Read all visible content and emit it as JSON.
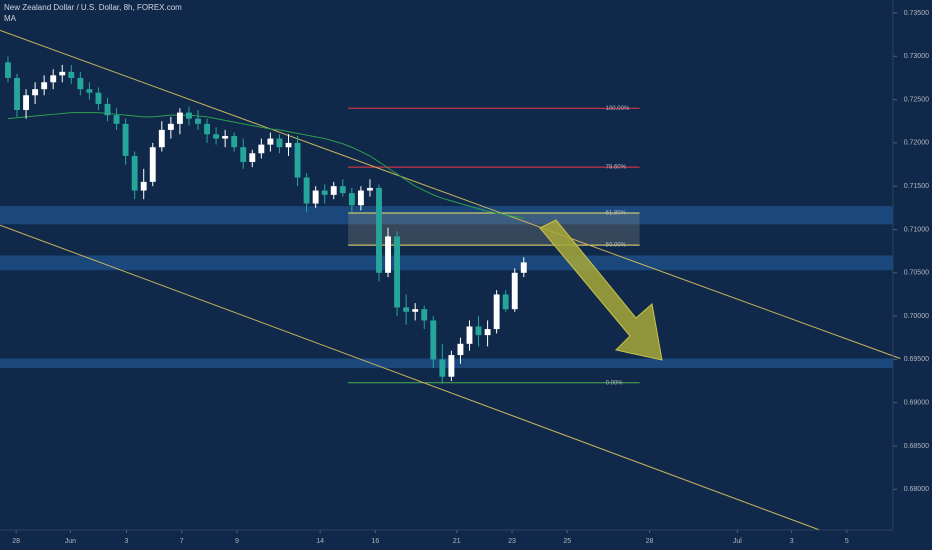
{
  "chart_data": {
    "type": "candlestick",
    "title": "New Zealand Dollar / U.S. Dollar, 8h, FOREX.com",
    "subtitle": "MA",
    "x": [
      0,
      1,
      2,
      3,
      4,
      5,
      6,
      7,
      8,
      9,
      10,
      11,
      12,
      13,
      14,
      15,
      16,
      17,
      18,
      19,
      20,
      21,
      22,
      23,
      24,
      25,
      26,
      27,
      28,
      29,
      30,
      31,
      32,
      33,
      34,
      35,
      36,
      37,
      38,
      39,
      40,
      41,
      42,
      43,
      44,
      45,
      46,
      47,
      48,
      49,
      50,
      51,
      52,
      53,
      54,
      55,
      56,
      57
    ],
    "open": [
      0.7293,
      0.7275,
      0.7238,
      0.7255,
      0.7262,
      0.727,
      0.7278,
      0.7282,
      0.7275,
      0.7262,
      0.7258,
      0.7245,
      0.7232,
      0.7222,
      0.7185,
      0.7145,
      0.7155,
      0.7195,
      0.7215,
      0.7222,
      0.7235,
      0.7228,
      0.7222,
      0.721,
      0.7205,
      0.7208,
      0.7195,
      0.7178,
      0.7188,
      0.7198,
      0.7205,
      0.7195,
      0.72,
      0.716,
      0.713,
      0.7145,
      0.714,
      0.715,
      0.7142,
      0.7128,
      0.7145,
      0.7148,
      0.705,
      0.7092,
      0.701,
      0.7005,
      0.7008,
      0.6995,
      0.695,
      0.693,
      0.6955,
      0.6968,
      0.6988,
      0.6978,
      0.6985,
      0.7025,
      0.7008,
      0.705
    ],
    "high": [
      0.73,
      0.728,
      0.7262,
      0.727,
      0.7278,
      0.7285,
      0.729,
      0.729,
      0.7282,
      0.727,
      0.7264,
      0.7252,
      0.724,
      0.7228,
      0.719,
      0.717,
      0.72,
      0.7225,
      0.723,
      0.724,
      0.7242,
      0.7238,
      0.7228,
      0.7218,
      0.7215,
      0.7212,
      0.7205,
      0.7192,
      0.7205,
      0.7212,
      0.721,
      0.721,
      0.7208,
      0.7165,
      0.715,
      0.7152,
      0.7155,
      0.7158,
      0.7148,
      0.715,
      0.7158,
      0.7152,
      0.7102,
      0.7098,
      0.7025,
      0.7015,
      0.7012,
      0.7,
      0.6968,
      0.696,
      0.6975,
      0.6995,
      0.7,
      0.6995,
      0.703,
      0.703,
      0.7055,
      0.7068
    ],
    "low": [
      0.727,
      0.723,
      0.7228,
      0.7245,
      0.7255,
      0.7262,
      0.727,
      0.7268,
      0.7255,
      0.725,
      0.7238,
      0.7225,
      0.7215,
      0.7175,
      0.7135,
      0.7135,
      0.715,
      0.719,
      0.7205,
      0.721,
      0.722,
      0.7215,
      0.72,
      0.7198,
      0.7195,
      0.719,
      0.717,
      0.7172,
      0.7182,
      0.719,
      0.7188,
      0.7185,
      0.715,
      0.712,
      0.7125,
      0.713,
      0.7135,
      0.7138,
      0.712,
      0.7122,
      0.7138,
      0.704,
      0.7045,
      0.7,
      0.699,
      0.6995,
      0.6985,
      0.694,
      0.6922,
      0.6925,
      0.6945,
      0.696,
      0.6965,
      0.6965,
      0.698,
      0.7005,
      0.7005,
      0.7045
    ],
    "close": [
      0.7275,
      0.7238,
      0.7255,
      0.7262,
      0.727,
      0.7278,
      0.7282,
      0.7275,
      0.7262,
      0.7258,
      0.7245,
      0.7232,
      0.7222,
      0.7185,
      0.7145,
      0.7155,
      0.7195,
      0.7215,
      0.7222,
      0.7235,
      0.7228,
      0.7222,
      0.721,
      0.7205,
      0.7208,
      0.7195,
      0.7178,
      0.7188,
      0.7198,
      0.7205,
      0.7195,
      0.72,
      0.716,
      0.713,
      0.7145,
      0.714,
      0.715,
      0.7142,
      0.7128,
      0.7145,
      0.7148,
      0.705,
      0.7092,
      0.701,
      0.7005,
      0.7008,
      0.6995,
      0.695,
      0.693,
      0.6955,
      0.6968,
      0.6988,
      0.6978,
      0.6985,
      0.7025,
      0.7008,
      0.705,
      0.7062
    ],
    "up_color": "#ffffff",
    "down_color": "#26a69a",
    "ma": {
      "name": "MA",
      "color": "#2e9e4f",
      "values": [
        0.7228,
        0.7229,
        0.723,
        0.7231,
        0.7232,
        0.7233,
        0.7234,
        0.7235,
        0.7235,
        0.7235,
        0.7235,
        0.7234,
        0.7233,
        0.7232,
        0.7231,
        0.723,
        0.723,
        0.7231,
        0.7232,
        0.7232,
        0.7232,
        0.7231,
        0.723,
        0.7228,
        0.7226,
        0.7224,
        0.7222,
        0.722,
        0.7218,
        0.7216,
        0.7215,
        0.7213,
        0.7211,
        0.7209,
        0.7207,
        0.7205,
        0.7202,
        0.7199,
        0.7195,
        0.719,
        0.7185,
        0.7178,
        0.7171,
        0.7164,
        0.7157,
        0.715,
        0.7145,
        0.714,
        0.7136,
        0.7133,
        0.713,
        0.7127,
        0.7124,
        0.7121,
        0.7119,
        0.7117,
        0.7115,
        0.7113
      ]
    },
    "xlim": [
      -0.88,
      97.8
    ],
    "ylim": [
      0.6753,
      0.7365
    ],
    "xticks": [
      {
        "value": 0.9,
        "label": "28"
      },
      {
        "value": 6.9,
        "label": "Jun"
      },
      {
        "value": 13.1,
        "label": "3"
      },
      {
        "value": 19.2,
        "label": "7"
      },
      {
        "value": 25.3,
        "label": "9"
      },
      {
        "value": 34.5,
        "label": "14"
      },
      {
        "value": 40.6,
        "label": "16"
      },
      {
        "value": 49.6,
        "label": "21"
      },
      {
        "value": 55.7,
        "label": "23"
      },
      {
        "value": 61.8,
        "label": "25"
      },
      {
        "value": 70.9,
        "label": "28"
      },
      {
        "value": 80.6,
        "label": "Jul"
      },
      {
        "value": 86.6,
        "label": "3"
      },
      {
        "value": 92.7,
        "label": "5"
      }
    ],
    "yticks": [
      {
        "value": 0.735,
        "label": "0.73500"
      },
      {
        "value": 0.73,
        "label": "0.73000"
      },
      {
        "value": 0.725,
        "label": "0.72500"
      },
      {
        "value": 0.72,
        "label": "0.72000"
      },
      {
        "value": 0.715,
        "label": "0.71500"
      },
      {
        "value": 0.71,
        "label": "0.71000"
      },
      {
        "value": 0.705,
        "label": "0.70500"
      },
      {
        "value": 0.7,
        "label": "0.70000"
      },
      {
        "value": 0.695,
        "label": "0.69500"
      },
      {
        "value": 0.69,
        "label": "0.69000"
      },
      {
        "value": 0.685,
        "label": "0.68500"
      },
      {
        "value": 0.68,
        "label": "0.68000"
      }
    ],
    "fib_x": [
      37.6,
      69.8
    ],
    "fib_levels": [
      {
        "label": "100.00%",
        "value": 0.724,
        "color": "#f23645"
      },
      {
        "label": "78.60%",
        "value": 0.7172,
        "color": "#f23645"
      },
      {
        "label": "61.80%",
        "value": 0.7119,
        "color": "#f2e26b"
      },
      {
        "label": "50.00%",
        "value": 0.7082,
        "color": "#f2e26b"
      },
      {
        "label": "0.00%",
        "value": 0.6923,
        "color": "#4caf50"
      }
    ],
    "zones": [
      [
        0.7106,
        0.7127
      ],
      [
        0.7053,
        0.707
      ],
      [
        0.694,
        0.6951
      ]
    ],
    "zone_color": "#1d4b82",
    "trendlines": [
      {
        "x": [
          -0.88,
          98.6
        ],
        "y": [
          0.733,
          0.6951
        ]
      },
      {
        "x": [
          -0.88,
          89.7
        ],
        "y": [
          0.7105,
          0.6753
        ]
      }
    ],
    "trend_color": "#c9b45c"
  }
}
